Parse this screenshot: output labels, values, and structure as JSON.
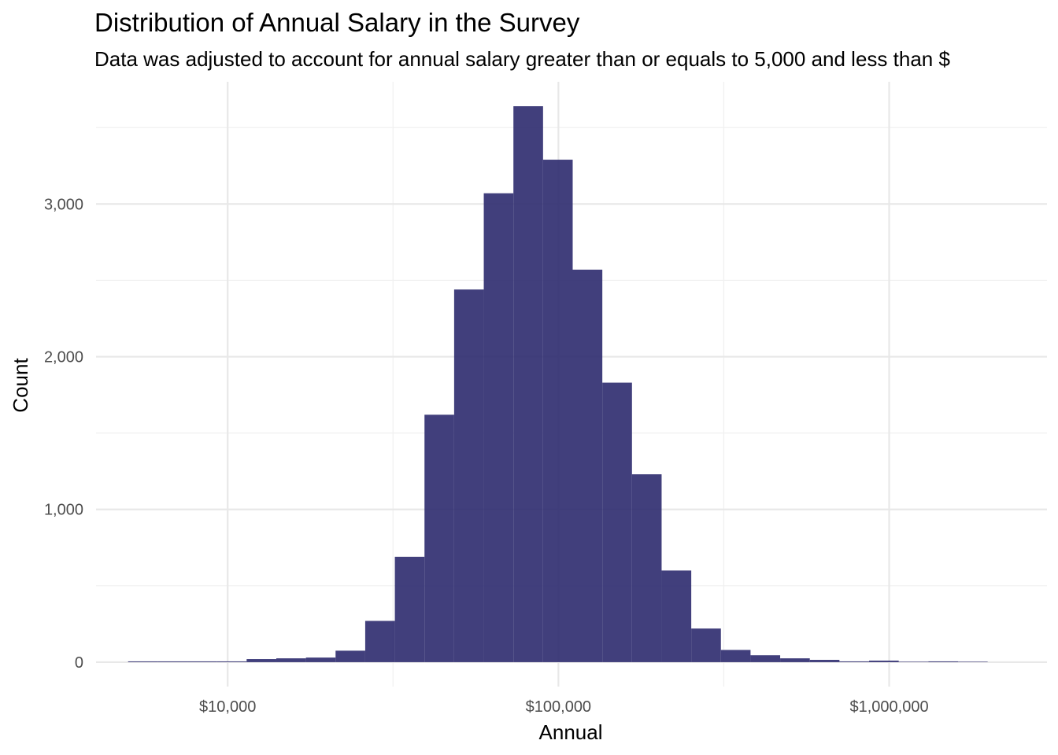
{
  "chart_data": {
    "type": "bar",
    "title": "Distribution of Annual Salary in the Survey",
    "subtitle": "Data was adjusted to account for annual salary greater than or equals to 5,000 and less than $",
    "xlabel": "Annual",
    "ylabel": "Count",
    "x_scale": "log10",
    "xlim": [
      4000,
      3000000
    ],
    "ylim": [
      -160,
      3800
    ],
    "x_ticks": [
      {
        "value": 10000,
        "label": "$10,000"
      },
      {
        "value": 100000,
        "label": "$100,000"
      },
      {
        "value": 1000000,
        "label": "$1,000,000"
      }
    ],
    "y_ticks": [
      {
        "value": 0,
        "label": "0"
      },
      {
        "value": 1000,
        "label": "1,000"
      },
      {
        "value": 2000,
        "label": "2,000"
      },
      {
        "value": 3000,
        "label": "3,000"
      }
    ],
    "grid": true,
    "bar_color": "#2c2a6e",
    "bin_edges": [
      5000,
      6146,
      7554,
      9285,
      11413,
      14029,
      17244,
      21196,
      26053,
      32024,
      39364,
      48385,
      59474,
      73104,
      89857,
      110449,
      135761,
      166874,
      205118,
      252127,
      309908,
      380932,
      468231,
      575538,
      707438,
      869567,
      1068850,
      1313810,
      1614900,
      1985000
    ],
    "values": [
      5,
      5,
      5,
      5,
      20,
      25,
      30,
      75,
      270,
      690,
      1620,
      2440,
      3070,
      3640,
      3290,
      2570,
      1830,
      1230,
      600,
      220,
      80,
      45,
      25,
      15,
      5,
      10,
      3,
      5,
      3
    ]
  }
}
